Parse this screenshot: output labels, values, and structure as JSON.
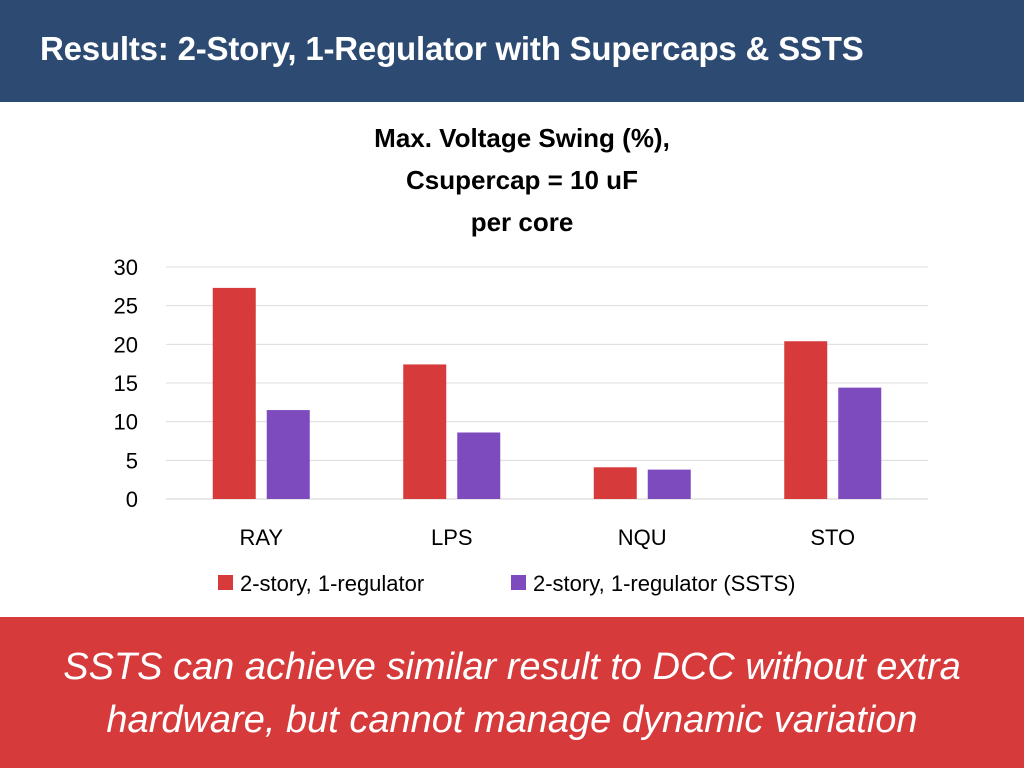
{
  "slide": {
    "title": "Results: 2-Story, 1-Regulator with Supercaps & SSTS",
    "conclusion_lines": [
      "SSTS can achieve similar result to DCC without extra",
      "hardware, but cannot manage dynamic variation"
    ]
  },
  "colors": {
    "header_bg": "#2d4b72",
    "footer_bg": "#d63a3a",
    "series_1": "#d63a3a",
    "series_2": "#7d4bbd"
  },
  "chart_data": {
    "type": "bar",
    "title_lines": [
      "Max. Voltage Swing (%),",
      "Csupercap = 10 uF",
      "per core"
    ],
    "categories": [
      "RAY",
      "LPS",
      "NQU",
      "STO"
    ],
    "series": [
      {
        "name": "2-story, 1-regulator",
        "values": [
          27.3,
          17.4,
          4.1,
          20.4
        ]
      },
      {
        "name": "2-story, 1-regulator (SSTS)",
        "values": [
          11.5,
          8.6,
          3.8,
          14.4
        ]
      }
    ],
    "ylim": [
      0,
      30
    ],
    "yticks": [
      0,
      5,
      10,
      15,
      20,
      25,
      30
    ],
    "grid": true,
    "legend": "bottom"
  }
}
